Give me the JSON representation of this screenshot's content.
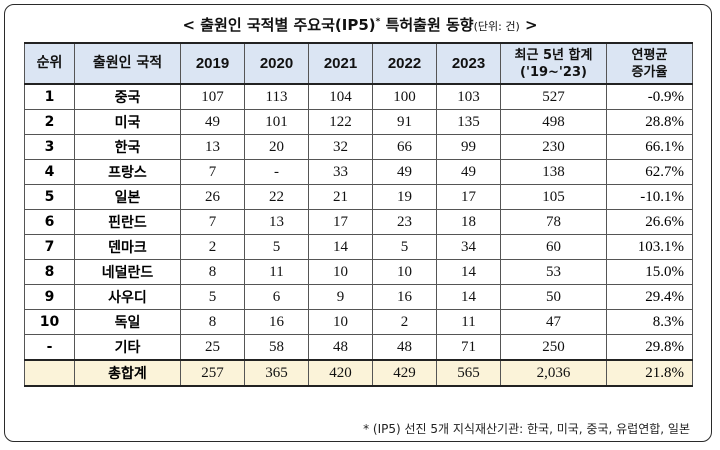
{
  "title": {
    "main": "< 출원인 국적별 주요국(IP5)",
    "marker": "*",
    "rest": " 특허출원 동향",
    "unit": "(단위: 건)",
    "close": " >"
  },
  "columns": {
    "rank": "순위",
    "country": "출원인 국적",
    "y2019": "2019",
    "y2020": "2020",
    "y2021": "2021",
    "y2022": "2022",
    "y2023": "2023",
    "sum5_line1": "최근 5년 합계",
    "sum5_line2": "('19~'23)",
    "cagr_line1": "연평균",
    "cagr_line2": "증가율"
  },
  "rows": [
    {
      "rank": "1",
      "country": "중국",
      "y2019": "107",
      "y2020": "113",
      "y2021": "104",
      "y2022": "100",
      "y2023": "103",
      "sum5": "527",
      "cagr": "-0.9%"
    },
    {
      "rank": "2",
      "country": "미국",
      "y2019": "49",
      "y2020": "101",
      "y2021": "122",
      "y2022": "91",
      "y2023": "135",
      "sum5": "498",
      "cagr": "28.8%"
    },
    {
      "rank": "3",
      "country": "한국",
      "y2019": "13",
      "y2020": "20",
      "y2021": "32",
      "y2022": "66",
      "y2023": "99",
      "sum5": "230",
      "cagr": "66.1%"
    },
    {
      "rank": "4",
      "country": "프랑스",
      "y2019": "7",
      "y2020": "-",
      "y2021": "33",
      "y2022": "49",
      "y2023": "49",
      "sum5": "138",
      "cagr": "62.7%"
    },
    {
      "rank": "5",
      "country": "일본",
      "y2019": "26",
      "y2020": "22",
      "y2021": "21",
      "y2022": "19",
      "y2023": "17",
      "sum5": "105",
      "cagr": "-10.1%"
    },
    {
      "rank": "6",
      "country": "핀란드",
      "y2019": "7",
      "y2020": "13",
      "y2021": "17",
      "y2022": "23",
      "y2023": "18",
      "sum5": "78",
      "cagr": "26.6%"
    },
    {
      "rank": "7",
      "country": "덴마크",
      "y2019": "2",
      "y2020": "5",
      "y2021": "14",
      "y2022": "5",
      "y2023": "34",
      "sum5": "60",
      "cagr": "103.1%"
    },
    {
      "rank": "8",
      "country": "네덜란드",
      "y2019": "8",
      "y2020": "11",
      "y2021": "10",
      "y2022": "10",
      "y2023": "14",
      "sum5": "53",
      "cagr": "15.0%"
    },
    {
      "rank": "9",
      "country": "사우디",
      "y2019": "5",
      "y2020": "6",
      "y2021": "9",
      "y2022": "16",
      "y2023": "14",
      "sum5": "50",
      "cagr": "29.4%"
    },
    {
      "rank": "10",
      "country": "독일",
      "y2019": "8",
      "y2020": "16",
      "y2021": "10",
      "y2022": "2",
      "y2023": "11",
      "sum5": "47",
      "cagr": "8.3%"
    },
    {
      "rank": "-",
      "country": "기타",
      "y2019": "25",
      "y2020": "58",
      "y2021": "48",
      "y2022": "48",
      "y2023": "71",
      "sum5": "250",
      "cagr": "29.8%"
    }
  ],
  "total": {
    "label": "총합계",
    "y2019": "257",
    "y2020": "365",
    "y2021": "420",
    "y2022": "429",
    "y2023": "565",
    "sum5": "2,036",
    "cagr": "21.8%"
  },
  "footnote": "* (IP5) 선진 5개 지식재산기관: 한국, 미국, 중국, 유럽연합, 일본",
  "colors": {
    "header_bg": "#dbe5f3",
    "total_bg": "#fbf3d9"
  }
}
